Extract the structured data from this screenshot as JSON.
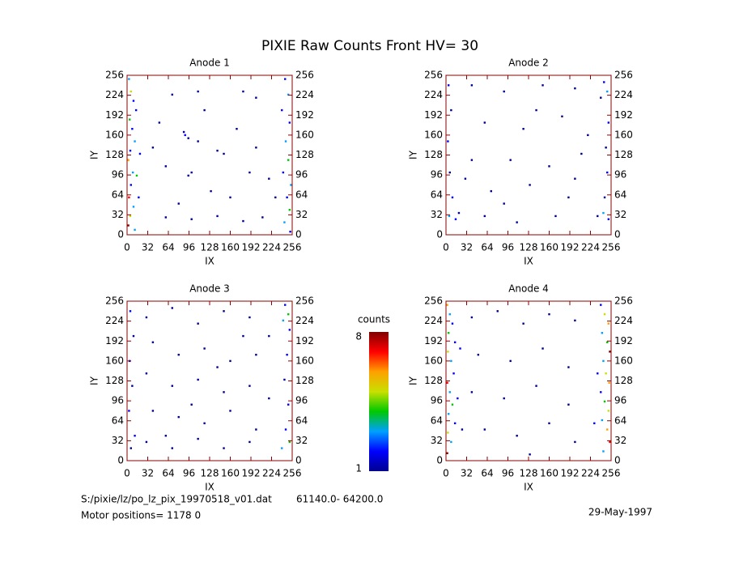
{
  "title": "PIXIE Raw Counts Front HV= 30",
  "chart_data": [
    {
      "type": "heatmap",
      "title": "Anode 1",
      "xlabel": "IX",
      "ylabel": "IY",
      "xlim": [
        0,
        256
      ],
      "ylim": [
        0,
        256
      ],
      "xticks": [
        0,
        32,
        64,
        96,
        128,
        160,
        192,
        224,
        256
      ],
      "yticks": [
        0,
        32,
        64,
        96,
        128,
        160,
        192,
        224,
        256
      ],
      "points": [
        [
          3,
          250,
          3
        ],
        [
          6,
          230,
          5
        ],
        [
          10,
          215,
          2
        ],
        [
          14,
          200,
          2
        ],
        [
          4,
          185,
          4
        ],
        [
          8,
          170,
          2
        ],
        [
          12,
          150,
          3
        ],
        [
          5,
          135,
          2
        ],
        [
          2,
          120,
          6
        ],
        [
          9,
          100,
          3
        ],
        [
          15,
          95,
          4
        ],
        [
          6,
          80,
          2
        ],
        [
          3,
          60,
          7
        ],
        [
          10,
          45,
          3
        ],
        [
          5,
          30,
          5
        ],
        [
          2,
          15,
          8
        ],
        [
          12,
          8,
          3
        ],
        [
          18,
          60,
          2
        ],
        [
          20,
          130,
          2
        ],
        [
          245,
          250,
          2
        ],
        [
          250,
          225,
          3
        ],
        [
          240,
          200,
          2
        ],
        [
          252,
          180,
          2
        ],
        [
          246,
          150,
          3
        ],
        [
          250,
          120,
          4
        ],
        [
          242,
          100,
          2
        ],
        [
          254,
          80,
          3
        ],
        [
          248,
          60,
          2
        ],
        [
          252,
          40,
          4
        ],
        [
          244,
          20,
          3
        ],
        [
          253,
          5,
          2
        ],
        [
          90,
          160,
          2
        ],
        [
          95,
          155,
          1
        ],
        [
          88,
          165,
          1
        ],
        [
          95,
          95,
          1
        ],
        [
          100,
          100,
          1
        ],
        [
          140,
          135,
          1
        ],
        [
          150,
          130,
          1
        ],
        [
          60,
          28,
          1
        ],
        [
          100,
          25,
          1
        ],
        [
          140,
          30,
          1
        ],
        [
          180,
          22,
          1
        ],
        [
          210,
          28,
          1
        ],
        [
          70,
          225,
          1
        ],
        [
          110,
          230,
          1
        ],
        [
          180,
          230,
          1
        ],
        [
          200,
          220,
          1
        ],
        [
          50,
          180,
          1
        ],
        [
          60,
          110,
          1
        ],
        [
          120,
          200,
          1
        ],
        [
          170,
          170,
          1
        ],
        [
          200,
          140,
          1
        ],
        [
          220,
          90,
          1
        ],
        [
          130,
          70,
          1
        ],
        [
          40,
          140,
          1
        ],
        [
          230,
          60,
          1
        ],
        [
          160,
          60,
          1
        ],
        [
          80,
          50,
          1
        ],
        [
          110,
          150,
          1
        ],
        [
          190,
          100,
          1
        ]
      ]
    },
    {
      "type": "heatmap",
      "title": "Anode 2",
      "xlabel": "IX",
      "ylabel": "IY",
      "xlim": [
        0,
        256
      ],
      "ylim": [
        0,
        256
      ],
      "xticks": [
        0,
        32,
        64,
        96,
        128,
        160,
        192,
        224,
        256
      ],
      "yticks": [
        0,
        32,
        64,
        96,
        128,
        160,
        192,
        224,
        256
      ],
      "points": [
        [
          4,
          240,
          2
        ],
        [
          8,
          200,
          1
        ],
        [
          3,
          150,
          2
        ],
        [
          6,
          100,
          1
        ],
        [
          10,
          60,
          2
        ],
        [
          5,
          30,
          3
        ],
        [
          15,
          25,
          2
        ],
        [
          20,
          35,
          1
        ],
        [
          245,
          245,
          2
        ],
        [
          250,
          230,
          3
        ],
        [
          240,
          220,
          1
        ],
        [
          252,
          180,
          2
        ],
        [
          248,
          140,
          1
        ],
        [
          250,
          100,
          2
        ],
        [
          246,
          60,
          1
        ],
        [
          244,
          35,
          3
        ],
        [
          252,
          25,
          2
        ],
        [
          235,
          30,
          1
        ],
        [
          40,
          240,
          1
        ],
        [
          90,
          230,
          1
        ],
        [
          150,
          240,
          1
        ],
        [
          200,
          235,
          1
        ],
        [
          60,
          180,
          1
        ],
        [
          120,
          170,
          1
        ],
        [
          180,
          190,
          1
        ],
        [
          220,
          160,
          1
        ],
        [
          40,
          120,
          1
        ],
        [
          100,
          120,
          1
        ],
        [
          160,
          110,
          1
        ],
        [
          210,
          130,
          1
        ],
        [
          70,
          70,
          1
        ],
        [
          130,
          80,
          1
        ],
        [
          190,
          60,
          1
        ],
        [
          60,
          30,
          1
        ],
        [
          110,
          20,
          1
        ],
        [
          170,
          30,
          1
        ],
        [
          30,
          90,
          1
        ],
        [
          140,
          200,
          1
        ],
        [
          200,
          90,
          1
        ],
        [
          90,
          50,
          1
        ]
      ]
    },
    {
      "type": "heatmap",
      "title": "Anode 3",
      "xlabel": "IX",
      "ylabel": "IY",
      "xlim": [
        0,
        256
      ],
      "ylim": [
        0,
        256
      ],
      "xticks": [
        0,
        32,
        64,
        96,
        128,
        160,
        192,
        224,
        256
      ],
      "yticks": [
        0,
        32,
        64,
        96,
        128,
        160,
        192,
        224,
        256
      ],
      "points": [
        [
          5,
          240,
          2
        ],
        [
          10,
          200,
          1
        ],
        [
          4,
          160,
          2
        ],
        [
          8,
          120,
          1
        ],
        [
          3,
          80,
          2
        ],
        [
          12,
          40,
          2
        ],
        [
          6,
          20,
          1
        ],
        [
          245,
          250,
          2
        ],
        [
          250,
          235,
          4
        ],
        [
          242,
          225,
          3
        ],
        [
          252,
          210,
          2
        ],
        [
          248,
          170,
          2
        ],
        [
          244,
          130,
          1
        ],
        [
          250,
          90,
          2
        ],
        [
          246,
          50,
          2
        ],
        [
          252,
          30,
          4
        ],
        [
          240,
          20,
          3
        ],
        [
          30,
          230,
          1
        ],
        [
          70,
          245,
          1
        ],
        [
          110,
          220,
          1
        ],
        [
          150,
          240,
          1
        ],
        [
          190,
          230,
          1
        ],
        [
          220,
          200,
          1
        ],
        [
          40,
          190,
          1
        ],
        [
          80,
          170,
          1
        ],
        [
          120,
          180,
          1
        ],
        [
          160,
          160,
          1
        ],
        [
          200,
          170,
          1
        ],
        [
          30,
          140,
          1
        ],
        [
          70,
          120,
          1
        ],
        [
          110,
          130,
          1
        ],
        [
          150,
          110,
          1
        ],
        [
          190,
          120,
          1
        ],
        [
          220,
          100,
          1
        ],
        [
          40,
          80,
          1
        ],
        [
          80,
          70,
          1
        ],
        [
          120,
          60,
          1
        ],
        [
          160,
          80,
          1
        ],
        [
          200,
          50,
          1
        ],
        [
          30,
          30,
          1
        ],
        [
          70,
          20,
          1
        ],
        [
          110,
          35,
          1
        ],
        [
          150,
          20,
          1
        ],
        [
          190,
          30,
          1
        ],
        [
          100,
          90,
          1
        ],
        [
          140,
          150,
          1
        ],
        [
          60,
          40,
          1
        ],
        [
          180,
          200,
          1
        ]
      ]
    },
    {
      "type": "heatmap",
      "title": "Anode 4",
      "xlabel": "IX",
      "ylabel": "IY",
      "xlim": [
        0,
        256
      ],
      "ylim": [
        0,
        256
      ],
      "xticks": [
        0,
        32,
        64,
        96,
        128,
        160,
        192,
        224,
        256
      ],
      "yticks": [
        0,
        32,
        64,
        96,
        128,
        160,
        192,
        224,
        256
      ],
      "points": [
        [
          2,
          250,
          6
        ],
        [
          6,
          235,
          3
        ],
        [
          10,
          220,
          2
        ],
        [
          4,
          205,
          4
        ],
        [
          14,
          190,
          2
        ],
        [
          3,
          175,
          5
        ],
        [
          8,
          160,
          3
        ],
        [
          12,
          140,
          2
        ],
        [
          2,
          125,
          7
        ],
        [
          6,
          110,
          3
        ],
        [
          10,
          90,
          4
        ],
        [
          4,
          75,
          3
        ],
        [
          14,
          60,
          2
        ],
        [
          3,
          45,
          5
        ],
        [
          8,
          30,
          3
        ],
        [
          2,
          12,
          8
        ],
        [
          18,
          100,
          2
        ],
        [
          22,
          180,
          2
        ],
        [
          25,
          50,
          1
        ],
        [
          240,
          250,
          2
        ],
        [
          246,
          235,
          5
        ],
        [
          252,
          220,
          6
        ],
        [
          242,
          205,
          3
        ],
        [
          250,
          190,
          4
        ],
        [
          254,
          175,
          8
        ],
        [
          244,
          160,
          3
        ],
        [
          248,
          140,
          5
        ],
        [
          253,
          125,
          6
        ],
        [
          240,
          110,
          2
        ],
        [
          246,
          95,
          4
        ],
        [
          252,
          80,
          5
        ],
        [
          242,
          65,
          3
        ],
        [
          250,
          50,
          6
        ],
        [
          254,
          30,
          7
        ],
        [
          244,
          15,
          3
        ],
        [
          235,
          140,
          2
        ],
        [
          230,
          60,
          2
        ],
        [
          40,
          230,
          1
        ],
        [
          80,
          240,
          1
        ],
        [
          120,
          220,
          1
        ],
        [
          160,
          235,
          1
        ],
        [
          200,
          225,
          1
        ],
        [
          50,
          170,
          1
        ],
        [
          100,
          160,
          1
        ],
        [
          150,
          180,
          1
        ],
        [
          190,
          150,
          1
        ],
        [
          40,
          110,
          1
        ],
        [
          90,
          100,
          1
        ],
        [
          140,
          120,
          1
        ],
        [
          190,
          90,
          1
        ],
        [
          60,
          50,
          1
        ],
        [
          110,
          40,
          1
        ],
        [
          160,
          60,
          1
        ],
        [
          200,
          30,
          1
        ],
        [
          130,
          10,
          1
        ]
      ]
    }
  ],
  "colorbar": {
    "label": "counts",
    "clim": [
      1,
      8
    ],
    "ticks": [
      8,
      1
    ],
    "colors": [
      "#000090",
      "#0000ff",
      "#00a0ff",
      "#00c800",
      "#c8e000",
      "#ffa000",
      "#ff0000",
      "#800000"
    ]
  },
  "footer": {
    "file": "S:/pixie/lz/po_lz_pix_19970518_v01.dat",
    "range": "61140.0- 64200.0",
    "motor": "Motor positions= 1178 0",
    "date": "29-May-1997"
  }
}
